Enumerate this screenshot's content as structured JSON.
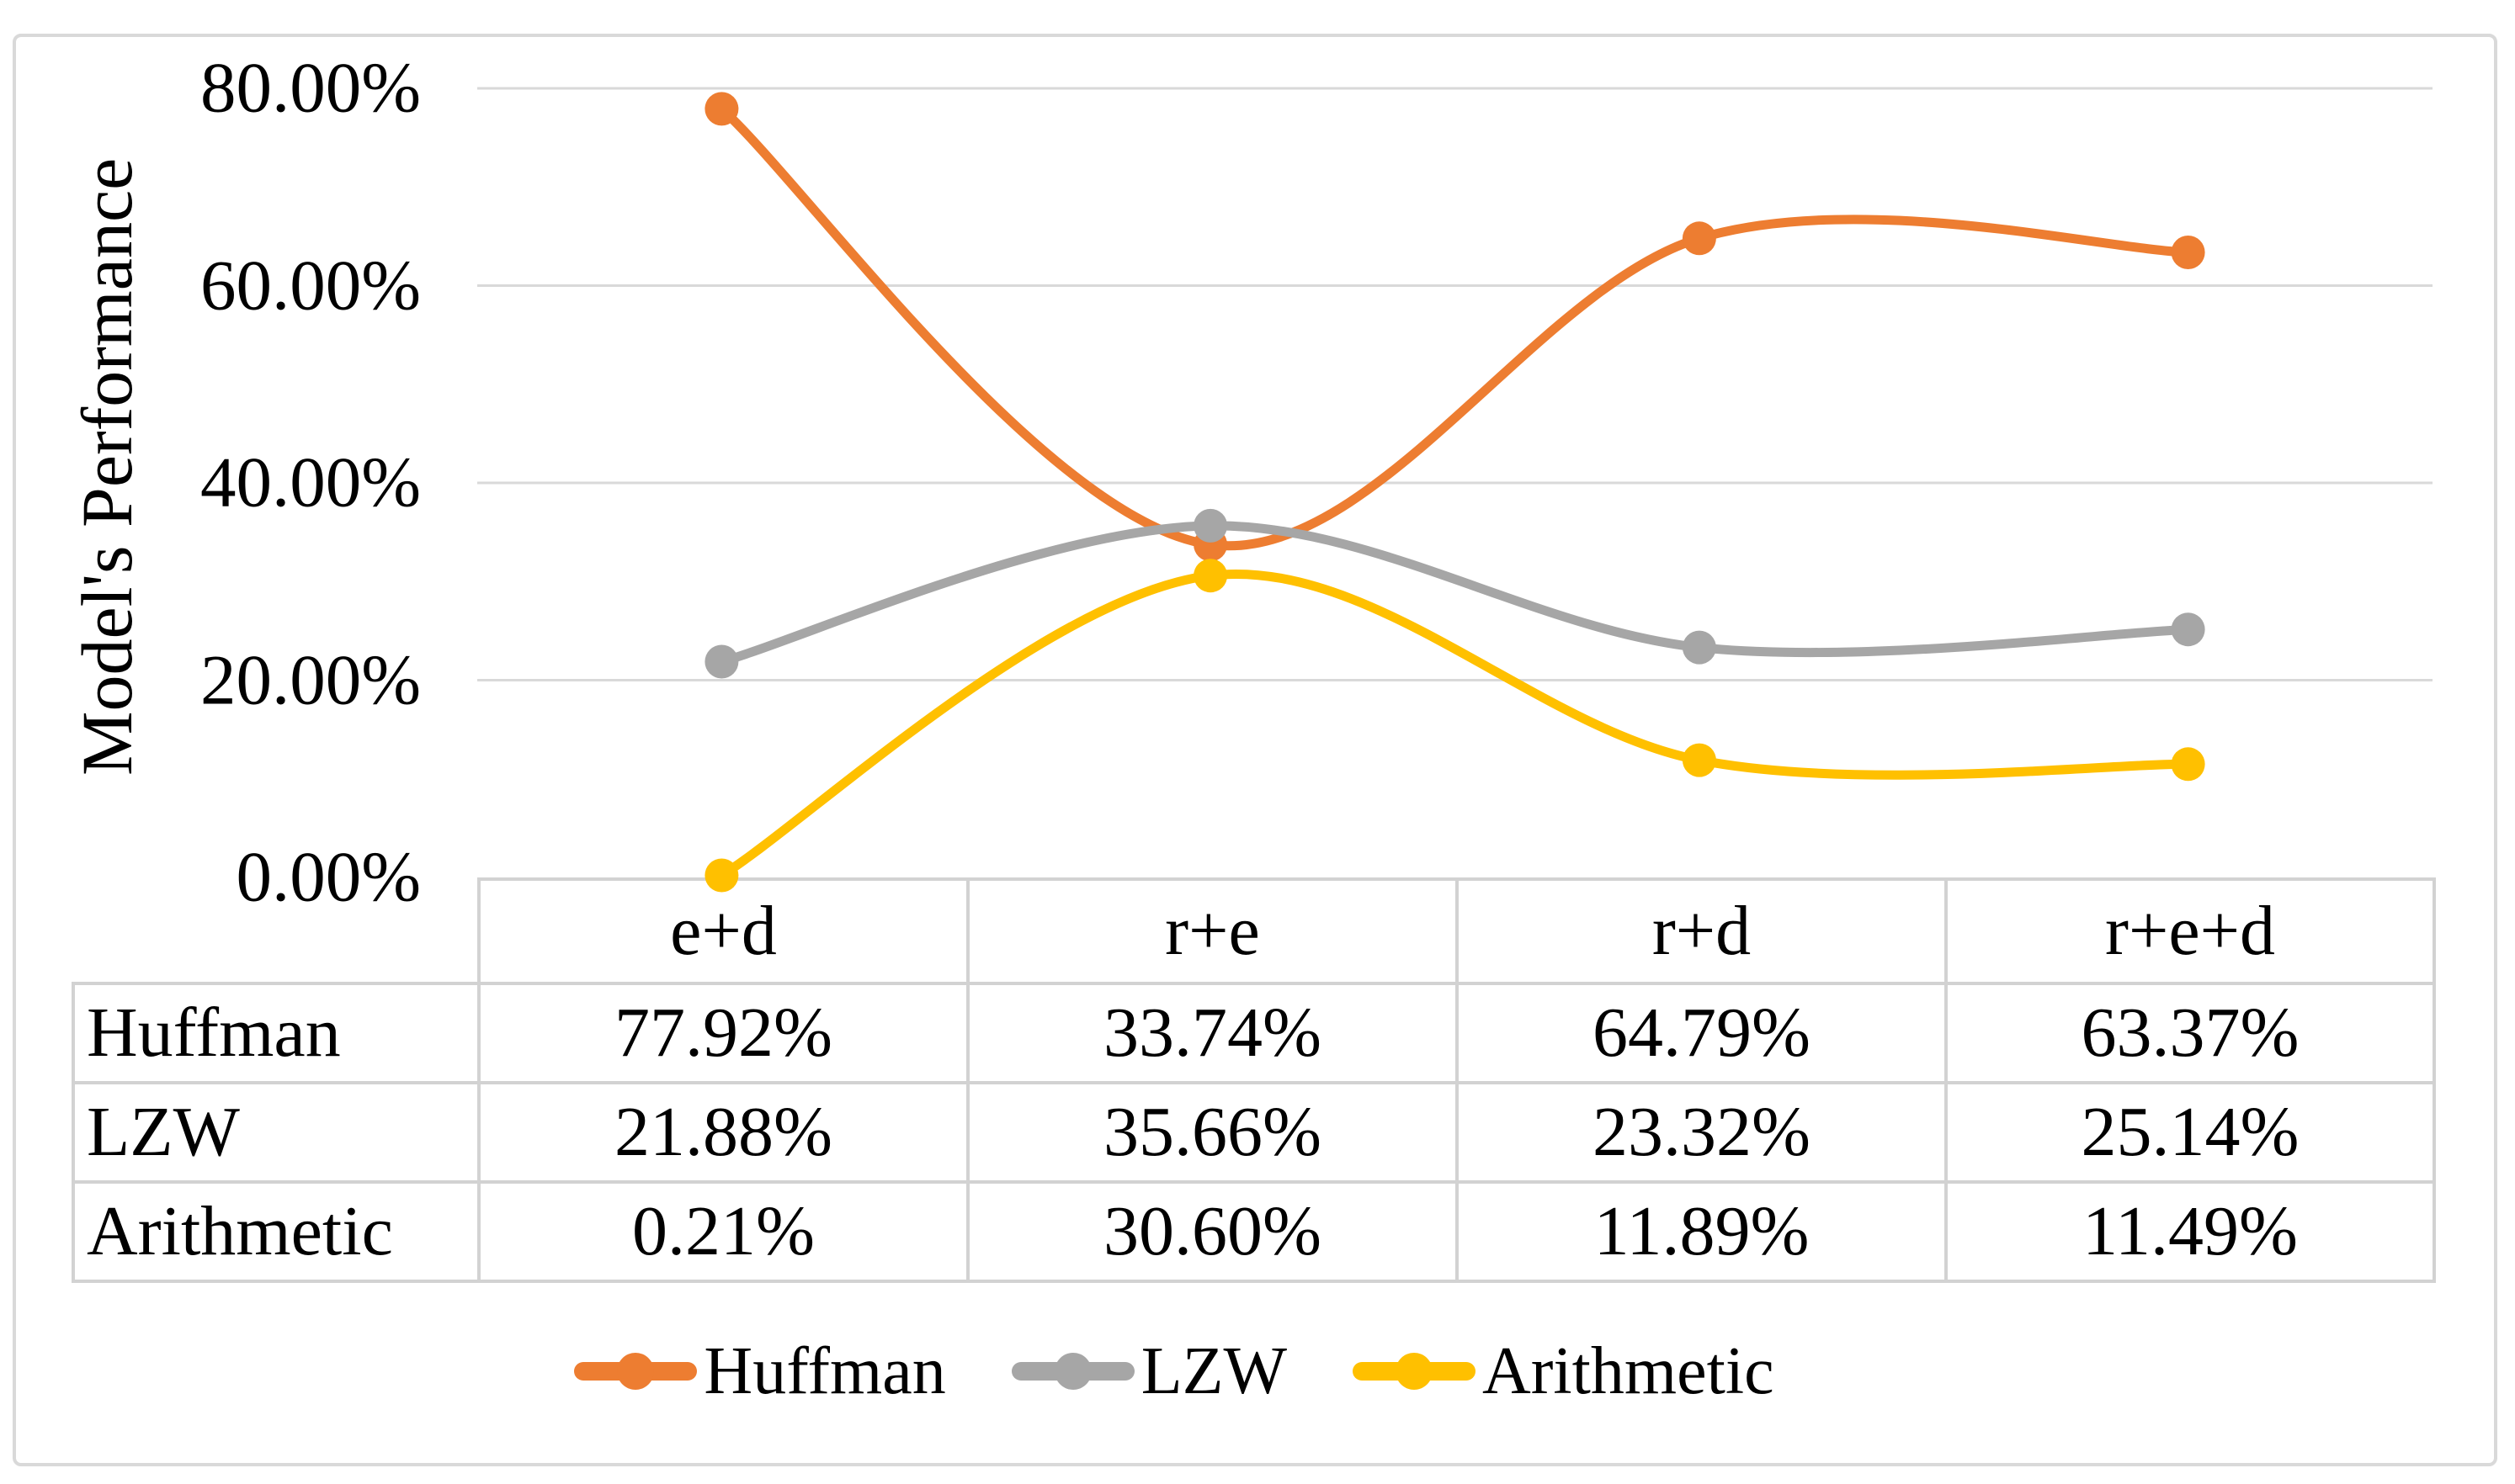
{
  "chart_data": {
    "type": "line",
    "title": "",
    "xlabel": "",
    "ylabel": "Model's Performance",
    "categories": [
      "e+d",
      "r+e",
      "r+d",
      "r+e+d"
    ],
    "series": [
      {
        "name": "Huffman",
        "color": "#ED7D31",
        "values": [
          77.92,
          33.74,
          64.79,
          63.37
        ]
      },
      {
        "name": "LZW",
        "color": "#A6A6A6",
        "values": [
          21.88,
          35.66,
          23.32,
          25.14
        ]
      },
      {
        "name": "Arithmetic",
        "color": "#FFC000",
        "values": [
          0.21,
          30.6,
          11.89,
          11.49
        ]
      }
    ],
    "y_axis": {
      "min": 0,
      "max": 80,
      "tick_interval": 20,
      "tick_labels": [
        "80.00%",
        "60.00%",
        "40.00%",
        "20.00%",
        "0.00%"
      ],
      "format": "percent"
    },
    "grid": "horizontal-only",
    "line_style": "smooth",
    "marker": "circle",
    "legend_position": "bottom",
    "data_table_shown": true
  },
  "table": {
    "corner_label": "",
    "column_headers": [
      "e+d",
      "r+e",
      "r+d",
      "r+e+d"
    ],
    "rows": [
      {
        "label": "Huffman",
        "cells": [
          "77.92%",
          "33.74%",
          "64.79%",
          "63.37%"
        ]
      },
      {
        "label": "LZW",
        "cells": [
          "21.88%",
          "35.66%",
          "23.32%",
          "25.14%"
        ]
      },
      {
        "label": "Arithmetic",
        "cells": [
          "0.21%",
          "30.60%",
          "11.89%",
          "11.49%"
        ]
      }
    ]
  },
  "legend": {
    "items": [
      {
        "label": "Huffman",
        "color": "#ED7D31"
      },
      {
        "label": "LZW",
        "color": "#A6A6A6"
      },
      {
        "label": "Arithmetic",
        "color": "#FFC000"
      }
    ]
  },
  "colors": {
    "gridline": "#D9D9D9",
    "table_border": "#D2D2D2",
    "frame_border": "#D9D9D9",
    "text": "#000000",
    "background": "#FFFFFF"
  }
}
